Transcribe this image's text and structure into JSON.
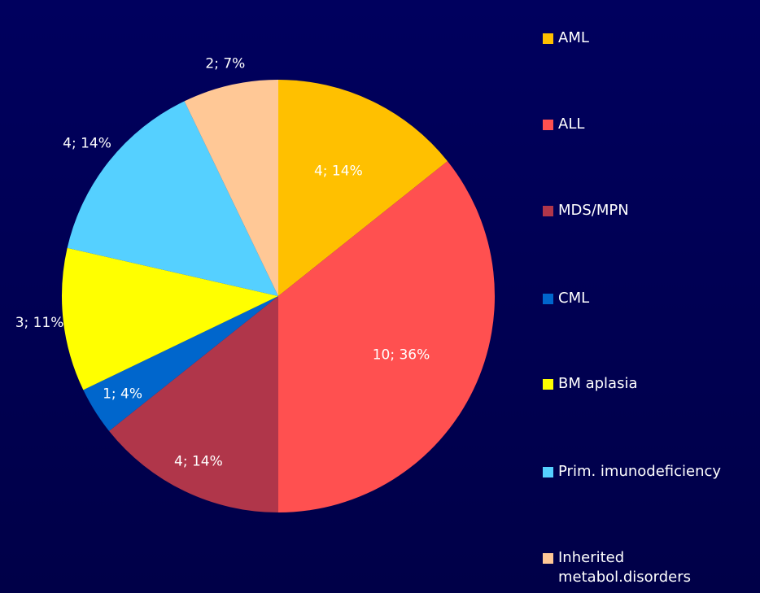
{
  "chart_data": {
    "type": "pie",
    "categories": [
      "AML",
      "ALL",
      "MDS/MPN",
      "CML",
      "BM aplasia",
      "Prim. imunodeficiency",
      "Inherited metabol.disorders"
    ],
    "values": [
      4,
      10,
      4,
      1,
      3,
      4,
      2
    ],
    "value_labels": [
      "4; 14%",
      "10; 36%",
      "4; 14%",
      "1; 4%",
      "3; 11%",
      "4; 14%",
      "2; 7%"
    ],
    "colors": [
      "#ffc000",
      "#ff5050",
      "#b0364a",
      "#0066cc",
      "#ffff00",
      "#55d0ff",
      "#ffc896"
    ],
    "legend": "right"
  }
}
